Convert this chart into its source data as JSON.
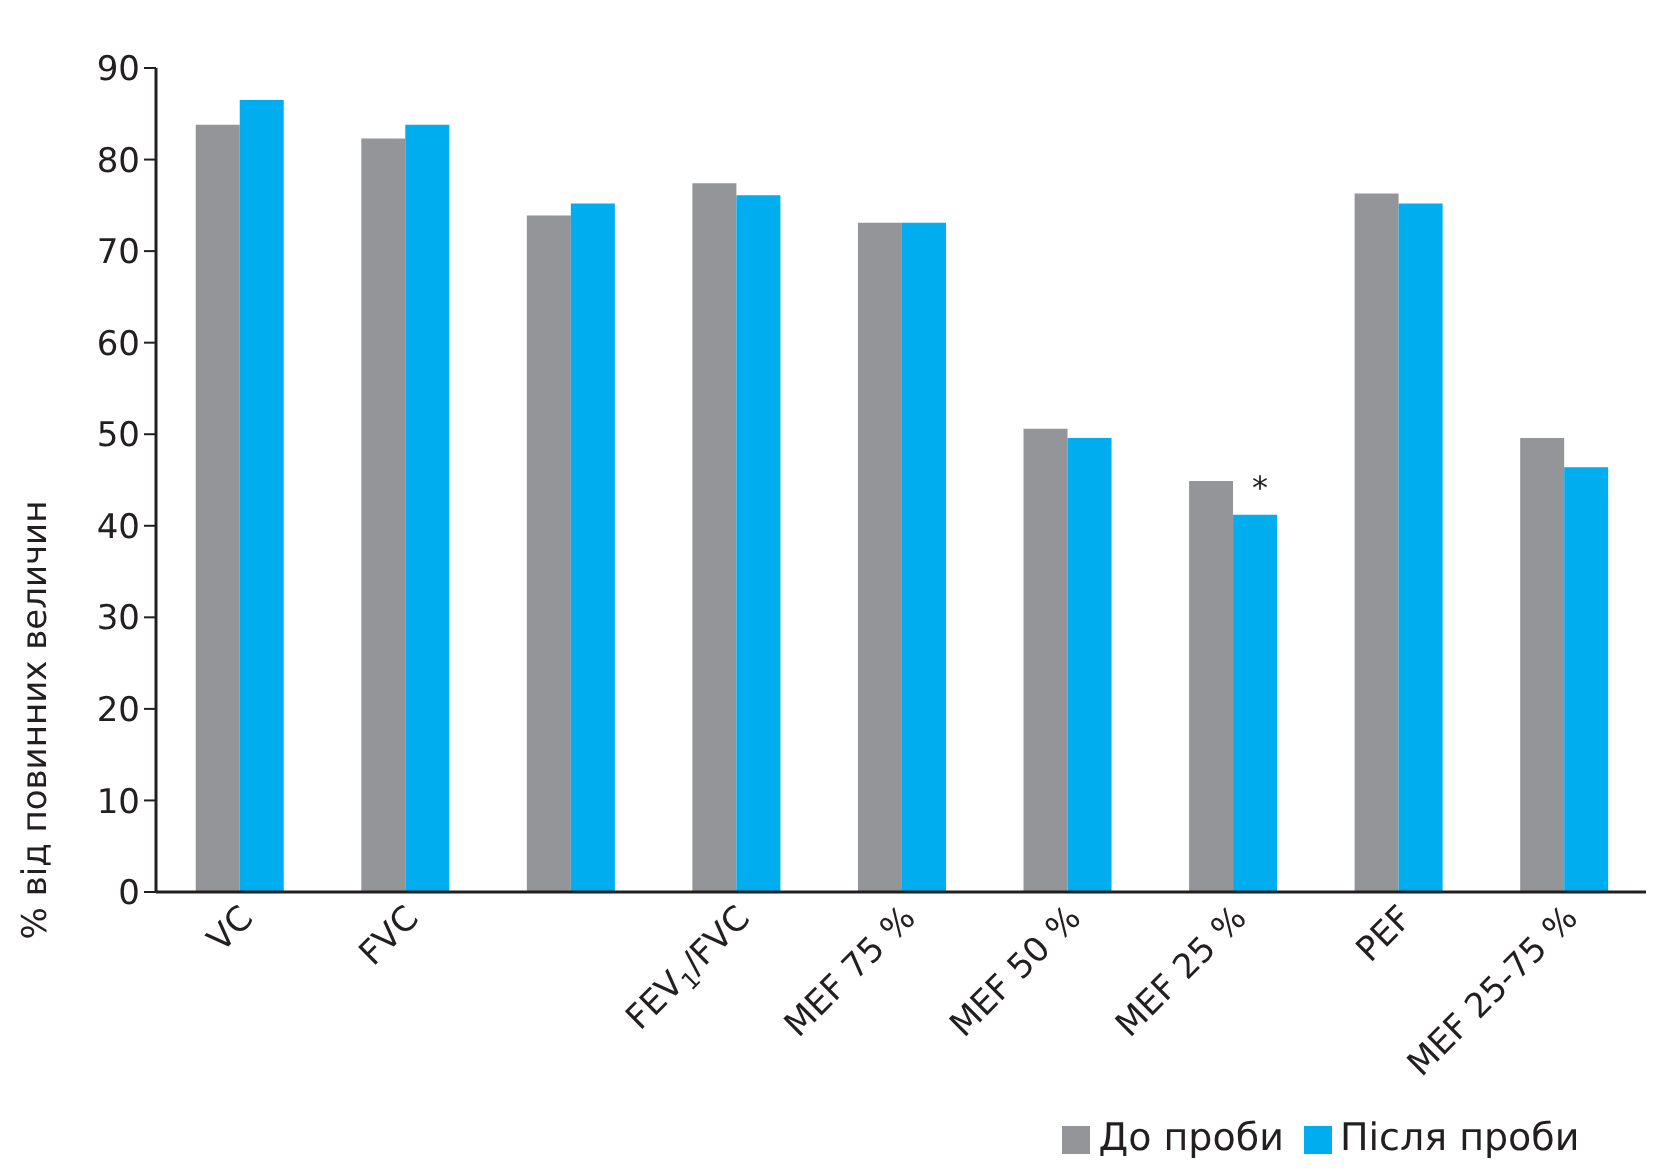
{
  "chart_data": {
    "type": "bar",
    "ylabel": "% від повинних величин",
    "categories": [
      "VC",
      "FVC",
      null,
      "FEV$_{1}$/FVC",
      "MEF 75 %",
      "MEF 50 %",
      "MEF 25 %",
      "PEF",
      "MEF 25-75 %"
    ],
    "series": [
      {
        "name": "До проби",
        "color": "#939598",
        "values": [
          83.8,
          82.3,
          73.9,
          77.4,
          73.1,
          50.6,
          44.9,
          76.3,
          49.6
        ]
      },
      {
        "name": "Після проби",
        "color": "#00adef",
        "values": [
          86.5,
          83.8,
          75.2,
          76.1,
          73.1,
          49.6,
          41.2,
          75.2,
          46.4
        ]
      }
    ],
    "ylim": [
      0,
      90
    ],
    "yticks": [
      0,
      10,
      20,
      30,
      40,
      50,
      60,
      70,
      80,
      90
    ],
    "grid": false,
    "legend": "bottom",
    "annotations": [
      {
        "text": "*",
        "x": "MEF 25 %",
        "y": 41.2
      }
    ]
  }
}
